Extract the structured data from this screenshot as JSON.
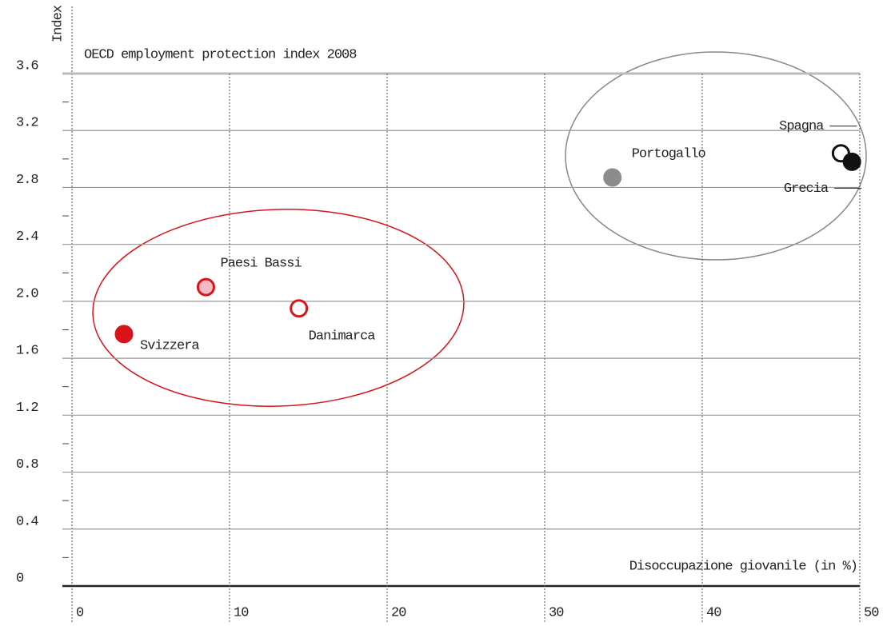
{
  "chart_data": {
    "type": "scatter",
    "title": "OECD employment protection index 2008",
    "ylabel": "Index",
    "xlabel": "Disoccupazione giovanile (in %)",
    "xlim": [
      0,
      50
    ],
    "ylim": [
      0,
      3.6
    ],
    "xticks": [
      0,
      10,
      20,
      30,
      40,
      50
    ],
    "yticks": [
      0,
      0.4,
      0.8,
      1.2,
      1.6,
      {
        "value": 2,
        "label": "2.0"
      },
      2.4,
      2.8,
      3.2,
      3.6
    ],
    "grid": true,
    "points": [
      {
        "name": "Svizzera",
        "x": 3.3,
        "y": 1.77,
        "fill": "#d7141a",
        "stroke": "#d7141a"
      },
      {
        "name": "Paesi Bassi",
        "x": 8.5,
        "y": 2.1,
        "fill": "#f4bcc0",
        "stroke": "#d7141a"
      },
      {
        "name": "Danimarca",
        "x": 14.4,
        "y": 1.95,
        "fill": "#ffffff",
        "stroke": "#d7141a"
      },
      {
        "name": "Portogallo",
        "x": 34.3,
        "y": 2.87,
        "fill": "#8c8c8c",
        "stroke": "#8c8c8c"
      },
      {
        "name": "Spagna",
        "x": 48.8,
        "y": 3.04,
        "fill": "#ffffff",
        "stroke": "#111111"
      },
      {
        "name": "Grecia",
        "x": 49.5,
        "y": 2.98,
        "fill": "#111111",
        "stroke": "#111111"
      }
    ]
  }
}
